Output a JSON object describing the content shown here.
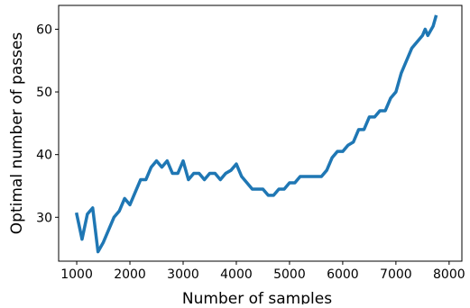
{
  "chart_data": {
    "type": "line",
    "xlabel": "Number of samples",
    "ylabel": "Optimal number of passes",
    "xlim": [
      660,
      8240
    ],
    "ylim": [
      23,
      63.8
    ],
    "xticks": [
      1000,
      2000,
      3000,
      4000,
      5000,
      6000,
      7000,
      8000
    ],
    "yticks": [
      30,
      40,
      50,
      60
    ],
    "series": [
      {
        "color": "#1f77b4",
        "x": [
          1000,
          1100,
          1200,
          1300,
          1400,
          1500,
          1600,
          1700,
          1800,
          1900,
          2000,
          2100,
          2200,
          2300,
          2400,
          2500,
          2600,
          2700,
          2800,
          2900,
          3000,
          3100,
          3200,
          3300,
          3400,
          3500,
          3600,
          3700,
          3800,
          3900,
          4000,
          4100,
          4200,
          4300,
          4400,
          4500,
          4600,
          4700,
          4800,
          4900,
          5000,
          5100,
          5200,
          5300,
          5400,
          5500,
          5600,
          5700,
          5800,
          5900,
          6000,
          6100,
          6200,
          6300,
          6400,
          6500,
          6600,
          6700,
          6800,
          6900,
          7000,
          7100,
          7200,
          7300,
          7400,
          7500,
          7550,
          7600,
          7700,
          7750
        ],
        "values": [
          30.5,
          26.5,
          30.5,
          31.5,
          24.5,
          26,
          28,
          30,
          31,
          33,
          32,
          34,
          36,
          36,
          38,
          39,
          38,
          39,
          37,
          37,
          39,
          36,
          37,
          37,
          36,
          37,
          37,
          36,
          37,
          37.5,
          38.5,
          36.5,
          35.5,
          34.5,
          34.5,
          34.5,
          33.5,
          33.5,
          34.5,
          34.5,
          35.5,
          35.5,
          36.5,
          36.5,
          36.5,
          36.5,
          36.5,
          37.5,
          39.5,
          40.5,
          40.5,
          41.5,
          42,
          44,
          44,
          46,
          46,
          47,
          47,
          49,
          50,
          53,
          55,
          57,
          58,
          59,
          60,
          59,
          60.5,
          62
        ]
      }
    ]
  }
}
